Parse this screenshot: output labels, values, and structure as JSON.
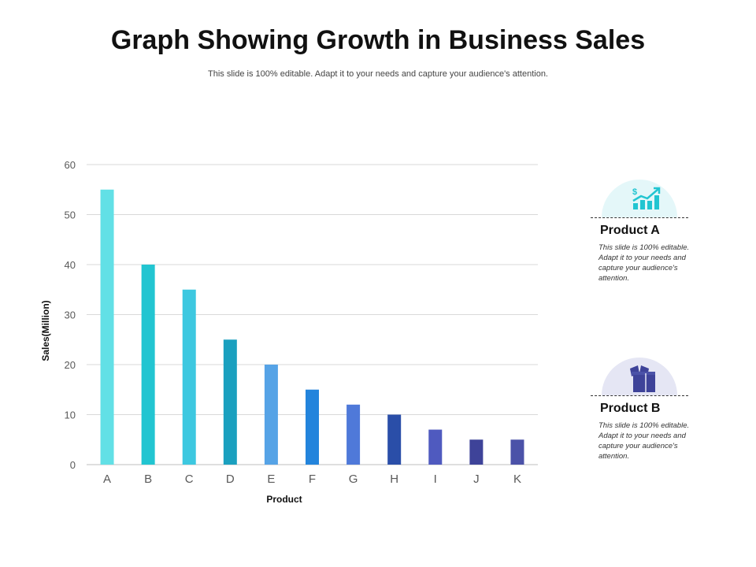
{
  "header": {
    "title": "Graph Showing Growth in Business Sales",
    "subtitle": "This slide is 100% editable. Adapt it to your needs and capture your audience's attention."
  },
  "chart_data": {
    "type": "bar",
    "title": "",
    "xlabel": "Product",
    "ylabel": "Sales(Million)",
    "ylim": [
      0,
      60
    ],
    "yticks": [
      0,
      10,
      20,
      30,
      40,
      50,
      60
    ],
    "grid": true,
    "categories": [
      "A",
      "B",
      "C",
      "D",
      "E",
      "F",
      "G",
      "H",
      "I",
      "J",
      "K"
    ],
    "values": [
      55,
      40,
      35,
      25,
      20,
      15,
      12,
      10,
      7,
      5,
      5
    ],
    "colors": [
      "#62e0e6",
      "#22c5d1",
      "#3dc8e0",
      "#1aa0bf",
      "#56a3e6",
      "#2384dc",
      "#4f79d9",
      "#2a4ea8",
      "#4f5abf",
      "#3e4399",
      "#4b52a8"
    ]
  },
  "cards": [
    {
      "icon": "growth-chart-icon",
      "title": "Product A",
      "description": "This slide is 100% editable. Adapt it to your needs and capture your audience's attention.",
      "icon_color": "#22c5d1",
      "icon_symbol": "$"
    },
    {
      "icon": "box-icon",
      "title": "Product B",
      "description": "This slide is 100% editable. Adapt it to your needs and capture your audience's attention.",
      "icon_color": "#3e4399"
    }
  ]
}
